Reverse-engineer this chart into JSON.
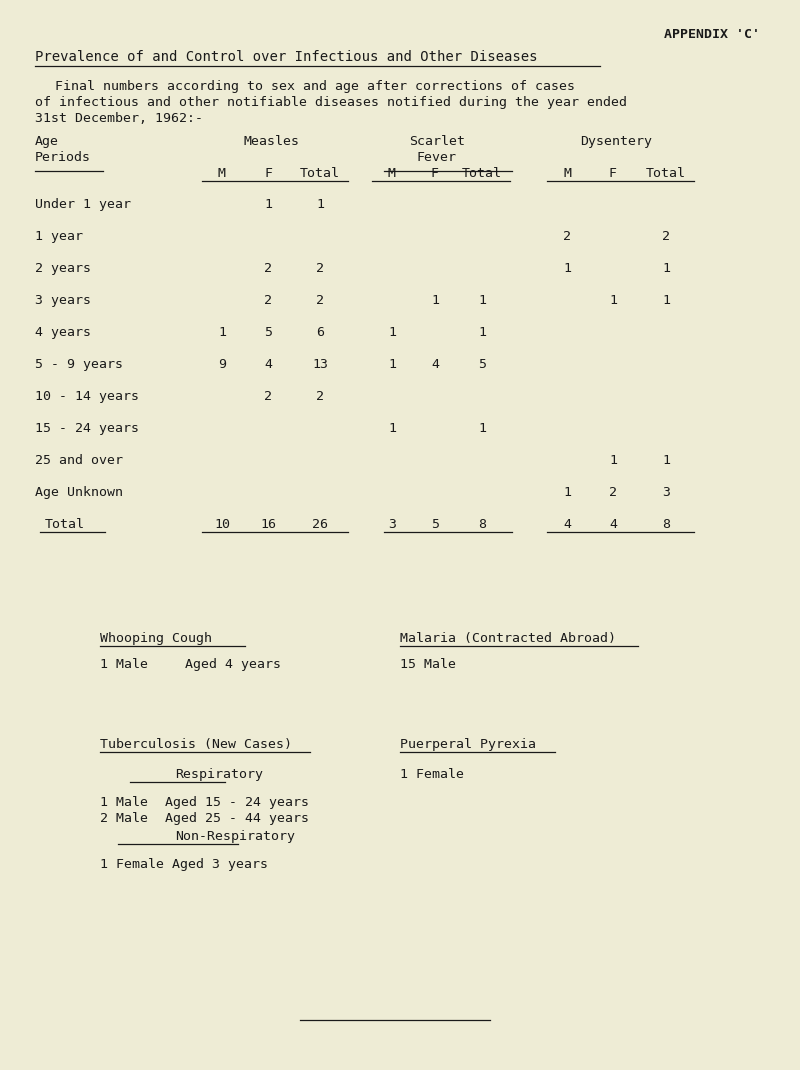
{
  "bg_color": "#eeecd5",
  "title_appendix": "APPENDIX 'C'",
  "title_main": "Prevalence of and Control over Infectious and Other Diseases",
  "intro_line1": "Final numbers according to sex and age after corrections of cases",
  "intro_line2": "of infectious and other notifiable diseases notified during the year ended",
  "intro_line3": "31st December, 1962:-",
  "age_periods": [
    "Under 1 year",
    "1 year",
    "2 years",
    "3 years",
    "4 years",
    "5 - 9 years",
    "10 - 14 years",
    "15 - 24 years",
    "25 and over",
    "Age Unknown",
    "Total"
  ],
  "measles_M": [
    "",
    "",
    "",
    "",
    "1",
    "9",
    "",
    "",
    "",
    "",
    "10"
  ],
  "measles_F": [
    "1",
    "",
    "2",
    "2",
    "5",
    "4",
    "2",
    "",
    "",
    "",
    "16"
  ],
  "measles_T": [
    "1",
    "",
    "2",
    "2",
    "6",
    "13",
    "2",
    "",
    "",
    "",
    "26"
  ],
  "scarlet_M": [
    "",
    "",
    "",
    "",
    "1",
    "1",
    "",
    "1",
    "",
    "",
    "3"
  ],
  "scarlet_F": [
    "",
    "",
    "",
    "1",
    "",
    "4",
    "",
    "",
    "",
    "",
    "5"
  ],
  "scarlet_T": [
    "",
    "",
    "",
    "1",
    "1",
    "5",
    "",
    "1",
    "",
    "",
    "8"
  ],
  "dysent_M": [
    "",
    "2",
    "1",
    "",
    "",
    "",
    "",
    "",
    "",
    "1",
    "4"
  ],
  "dysent_F": [
    "",
    "",
    "",
    "1",
    "",
    "",
    "",
    "",
    "1",
    "2",
    "4"
  ],
  "dysent_T": [
    "",
    "2",
    "1",
    "1",
    "",
    "",
    "",
    "",
    "1",
    "3",
    "8"
  ],
  "whooping_title": "Whooping Cough",
  "whooping_data1": "1 Male",
  "whooping_data2": "Aged 4 years",
  "malaria_title": "Malaria (Contracted Abroad)",
  "malaria_data": "15 Male",
  "tb_title": "Tuberculosis (New Cases)",
  "pp_title": "Puerperal Pyrexia",
  "resp_title": "Respiratory",
  "pp_data": "1 Female",
  "tb_resp1a": "1 Male",
  "tb_resp1b": "Aged 15 - 24 years",
  "tb_resp2a": "2 Male",
  "tb_resp2b": "Aged 25 - 44 years",
  "nonresp_title": "Non-Respiratory",
  "nonresp_data": "1 Female Aged 3 years"
}
